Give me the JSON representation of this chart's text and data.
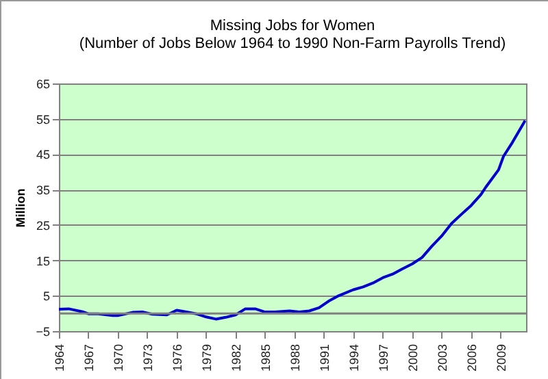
{
  "chart_data": {
    "type": "line",
    "title": "Missing Jobs for Women",
    "subtitle": "(Number of Jobs Below 1964 to 1990 Non-Farm Payrolls Trend)",
    "ylabel": "Million",
    "x": [
      1964,
      1965,
      1966.5,
      1967,
      1968,
      1969.5,
      1970,
      1971.5,
      1972.5,
      1973.5,
      1975,
      1976,
      1977,
      1978,
      1979,
      1980,
      1981,
      1982,
      1983,
      1984,
      1985,
      1986,
      1987.5,
      1988.5,
      1989.5,
      1990.5,
      1991.5,
      1992.5,
      1994,
      1995,
      1996,
      1997,
      1998,
      1999,
      2000,
      2001,
      2002,
      2003,
      2004,
      2005,
      2006,
      2007,
      2007.5,
      2008.8,
      2009.3,
      2010.2,
      2011.5
    ],
    "series": [
      {
        "color": "#0000cc",
        "values": [
          1.2,
          1.3,
          0.4,
          -0.1,
          -0.1,
          -0.6,
          -0.6,
          0.3,
          0.4,
          -0.2,
          -0.4,
          0.9,
          0.4,
          -0.1,
          -1,
          -1.6,
          -1.1,
          -0.4,
          1.3,
          1.3,
          0.4,
          0.4,
          0.7,
          0.4,
          0.7,
          1.6,
          3.5,
          5,
          6.7,
          7.5,
          8.6,
          10.1,
          11.1,
          12.6,
          14,
          15.8,
          19,
          21.9,
          25.4,
          28,
          30.5,
          33.6,
          35.7,
          40.6,
          44.4,
          48.3,
          54.5
        ]
      }
    ],
    "xlim": [
      1964,
      2011.6
    ],
    "xticks": [
      1964,
      1967,
      1970,
      1973,
      1976,
      1979,
      1982,
      1985,
      1988,
      1991,
      1994,
      1997,
      2000,
      2003,
      2006,
      2009
    ],
    "ylim": [
      -5,
      65
    ],
    "yticks": [
      -5,
      5,
      15,
      25,
      35,
      45,
      55,
      65
    ],
    "ref_lines": [
      {
        "axis": "y",
        "value": 0,
        "color": "#808080"
      }
    ],
    "grid": "y",
    "marker": "none",
    "line_style": "solid"
  }
}
